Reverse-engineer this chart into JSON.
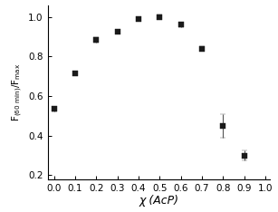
{
  "x": [
    0.0,
    0.1,
    0.2,
    0.3,
    0.4,
    0.5,
    0.6,
    0.7,
    0.8,
    0.9
  ],
  "y": [
    0.535,
    0.715,
    0.885,
    0.925,
    0.99,
    1.0,
    0.96,
    0.84,
    0.45,
    0.3
  ],
  "yerr": [
    0.012,
    0.008,
    0.015,
    0.008,
    0.008,
    0.01,
    0.012,
    0.01,
    0.06,
    0.025
  ],
  "xlabel": "χ (AcP)",
  "xlim": [
    -0.03,
    1.02
  ],
  "ylim": [
    0.18,
    1.06
  ],
  "xticks": [
    0.0,
    0.1,
    0.2,
    0.3,
    0.4,
    0.5,
    0.6,
    0.7,
    0.8,
    0.9,
    1.0
  ],
  "yticks": [
    0.2,
    0.4,
    0.6,
    0.8,
    1.0
  ],
  "marker": "s",
  "markersize": 4.5,
  "color": "#1a1a1a",
  "ecolor": "#555555",
  "capsize": 2.0,
  "elinewidth": 0.8,
  "markeredgewidth": 0.3,
  "spine_linewidth": 0.8,
  "tick_labelsize": 7.5,
  "xlabel_fontsize": 9,
  "ylabel_fontsize": 7.5
}
